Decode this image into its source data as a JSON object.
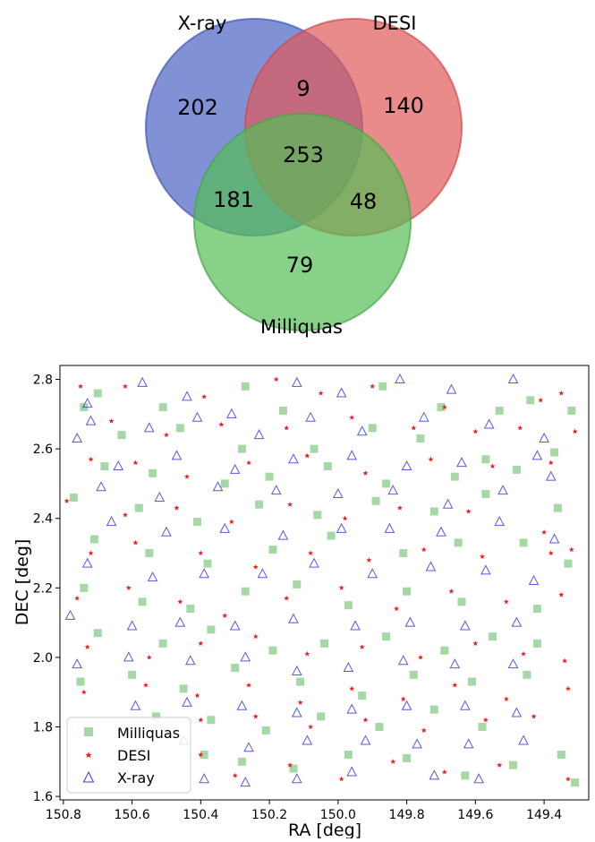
{
  "venn": {
    "sets": [
      "X-ray",
      "DESI",
      "Milliquas"
    ],
    "colors": {
      "X-ray": "#4c63c4",
      "DESI": "#e05a5a",
      "Milliquas": "#56bd56"
    },
    "counts": {
      "xray_only": "202",
      "desi_only": "140",
      "milliquas_only": "79",
      "xray_desi": "9",
      "xray_milliquas": "181",
      "desi_milliquas": "48",
      "all_three": "253"
    }
  },
  "chart_data": {
    "type": "scatter",
    "xlabel": "RA [deg]",
    "ylabel": "DEC [deg]",
    "xlim": [
      150.81,
      149.27
    ],
    "ylim": [
      1.59,
      2.84
    ],
    "x_ticks": [
      "150.8",
      "150.6",
      "150.4",
      "150.2",
      "150.0",
      "149.8",
      "149.6",
      "149.4"
    ],
    "y_ticks": [
      "1.6",
      "1.8",
      "2.0",
      "2.2",
      "2.4",
      "2.6",
      "2.8"
    ],
    "legend_position": "lower-left",
    "legend": [
      "Milliquas",
      "DESI",
      "X-ray"
    ],
    "series_styles": [
      {
        "name": "Milliquas",
        "marker": "square",
        "color": "#a6d8a6"
      },
      {
        "name": "DESI",
        "marker": "star",
        "color": "#ee1c1c"
      },
      {
        "name": "X-ray",
        "marker": "triangle",
        "color": "#3b3bdd"
      }
    ],
    "series": [
      {
        "name": "Milliquas",
        "points": [
          [
            150.74,
            2.72
          ],
          [
            150.7,
            2.76
          ],
          [
            150.51,
            2.72
          ],
          [
            150.27,
            2.78
          ],
          [
            150.16,
            2.71
          ],
          [
            149.87,
            2.78
          ],
          [
            149.7,
            2.72
          ],
          [
            149.53,
            2.71
          ],
          [
            149.44,
            2.74
          ],
          [
            149.32,
            2.71
          ],
          [
            150.63,
            2.64
          ],
          [
            150.46,
            2.66
          ],
          [
            150.28,
            2.6
          ],
          [
            150.07,
            2.6
          ],
          [
            149.9,
            2.66
          ],
          [
            149.76,
            2.63
          ],
          [
            149.57,
            2.57
          ],
          [
            149.37,
            2.59
          ],
          [
            150.68,
            2.55
          ],
          [
            150.54,
            2.53
          ],
          [
            150.33,
            2.5
          ],
          [
            150.2,
            2.52
          ],
          [
            150.03,
            2.55
          ],
          [
            149.86,
            2.5
          ],
          [
            149.66,
            2.52
          ],
          [
            149.48,
            2.54
          ],
          [
            150.77,
            2.46
          ],
          [
            150.58,
            2.43
          ],
          [
            150.41,
            2.39
          ],
          [
            150.23,
            2.44
          ],
          [
            150.06,
            2.41
          ],
          [
            149.89,
            2.45
          ],
          [
            149.72,
            2.42
          ],
          [
            149.57,
            2.47
          ],
          [
            149.36,
            2.43
          ],
          [
            150.71,
            2.34
          ],
          [
            150.55,
            2.3
          ],
          [
            150.38,
            2.27
          ],
          [
            150.19,
            2.31
          ],
          [
            150.02,
            2.35
          ],
          [
            149.81,
            2.3
          ],
          [
            149.65,
            2.33
          ],
          [
            149.46,
            2.33
          ],
          [
            149.33,
            2.27
          ],
          [
            150.74,
            2.2
          ],
          [
            150.57,
            2.16
          ],
          [
            150.43,
            2.14
          ],
          [
            150.27,
            2.19
          ],
          [
            150.12,
            2.21
          ],
          [
            149.97,
            2.15
          ],
          [
            149.8,
            2.19
          ],
          [
            149.64,
            2.16
          ],
          [
            149.42,
            2.14
          ],
          [
            150.7,
            2.07
          ],
          [
            150.51,
            2.04
          ],
          [
            150.37,
            2.08
          ],
          [
            150.19,
            2.02
          ],
          [
            150.04,
            2.04
          ],
          [
            149.86,
            2.06
          ],
          [
            149.69,
            2.02
          ],
          [
            149.55,
            2.06
          ],
          [
            149.42,
            2.04
          ],
          [
            150.75,
            1.93
          ],
          [
            150.6,
            1.95
          ],
          [
            150.45,
            1.91
          ],
          [
            150.3,
            1.97
          ],
          [
            150.11,
            1.93
          ],
          [
            149.93,
            1.89
          ],
          [
            149.78,
            1.95
          ],
          [
            149.61,
            1.93
          ],
          [
            149.45,
            1.95
          ],
          [
            150.53,
            1.83
          ],
          [
            150.37,
            1.82
          ],
          [
            150.21,
            1.79
          ],
          [
            150.05,
            1.83
          ],
          [
            149.88,
            1.8
          ],
          [
            149.72,
            1.85
          ],
          [
            149.58,
            1.8
          ],
          [
            149.35,
            1.72
          ],
          [
            150.39,
            1.72
          ],
          [
            150.28,
            1.7
          ],
          [
            150.13,
            1.68
          ],
          [
            149.97,
            1.72
          ],
          [
            149.8,
            1.71
          ],
          [
            149.63,
            1.66
          ],
          [
            149.49,
            1.69
          ],
          [
            149.31,
            1.64
          ]
        ]
      },
      {
        "name": "DESI",
        "points": [
          [
            150.75,
            2.78
          ],
          [
            150.62,
            2.78
          ],
          [
            150.39,
            2.75
          ],
          [
            150.18,
            2.8
          ],
          [
            150.05,
            2.76
          ],
          [
            149.9,
            2.78
          ],
          [
            149.69,
            2.72
          ],
          [
            149.41,
            2.74
          ],
          [
            149.35,
            2.76
          ],
          [
            150.66,
            2.68
          ],
          [
            150.5,
            2.64
          ],
          [
            150.34,
            2.67
          ],
          [
            150.15,
            2.66
          ],
          [
            149.96,
            2.69
          ],
          [
            149.78,
            2.66
          ],
          [
            149.6,
            2.65
          ],
          [
            149.47,
            2.66
          ],
          [
            149.31,
            2.65
          ],
          [
            150.72,
            2.57
          ],
          [
            150.59,
            2.56
          ],
          [
            150.44,
            2.52
          ],
          [
            150.26,
            2.56
          ],
          [
            150.09,
            2.58
          ],
          [
            149.92,
            2.53
          ],
          [
            149.73,
            2.57
          ],
          [
            149.55,
            2.55
          ],
          [
            149.38,
            2.56
          ],
          [
            150.79,
            2.45
          ],
          [
            150.62,
            2.41
          ],
          [
            150.47,
            2.43
          ],
          [
            150.31,
            2.39
          ],
          [
            150.14,
            2.44
          ],
          [
            149.98,
            2.4
          ],
          [
            149.82,
            2.43
          ],
          [
            149.62,
            2.42
          ],
          [
            149.4,
            2.36
          ],
          [
            150.72,
            2.3
          ],
          [
            150.59,
            2.33
          ],
          [
            150.4,
            2.3
          ],
          [
            150.24,
            2.26
          ],
          [
            150.08,
            2.3
          ],
          [
            149.91,
            2.28
          ],
          [
            149.75,
            2.31
          ],
          [
            149.58,
            2.29
          ],
          [
            149.38,
            2.3
          ],
          [
            149.32,
            2.31
          ],
          [
            150.76,
            2.17
          ],
          [
            150.61,
            2.2
          ],
          [
            150.46,
            2.16
          ],
          [
            150.33,
            2.12
          ],
          [
            150.15,
            2.17
          ],
          [
            149.99,
            2.2
          ],
          [
            149.83,
            2.14
          ],
          [
            149.67,
            2.19
          ],
          [
            149.51,
            2.16
          ],
          [
            149.35,
            2.18
          ],
          [
            150.73,
            2.03
          ],
          [
            150.55,
            2.0
          ],
          [
            150.4,
            2.04
          ],
          [
            150.24,
            2.06
          ],
          [
            150.09,
            2.01
          ],
          [
            149.93,
            2.03
          ],
          [
            149.76,
            2.0
          ],
          [
            149.6,
            2.04
          ],
          [
            149.46,
            2.01
          ],
          [
            149.34,
            1.99
          ],
          [
            150.74,
            1.9
          ],
          [
            150.56,
            1.92
          ],
          [
            150.41,
            1.89
          ],
          [
            150.26,
            1.92
          ],
          [
            150.11,
            1.87
          ],
          [
            149.96,
            1.91
          ],
          [
            149.81,
            1.88
          ],
          [
            149.66,
            1.92
          ],
          [
            149.51,
            1.88
          ],
          [
            149.33,
            1.91
          ],
          [
            150.4,
            1.82
          ],
          [
            150.24,
            1.83
          ],
          [
            150.08,
            1.8
          ],
          [
            149.92,
            1.82
          ],
          [
            149.75,
            1.79
          ],
          [
            149.57,
            1.82
          ],
          [
            149.43,
            1.83
          ],
          [
            150.4,
            1.72
          ],
          [
            150.3,
            1.66
          ],
          [
            150.14,
            1.69
          ],
          [
            149.99,
            1.65
          ],
          [
            149.84,
            1.7
          ],
          [
            149.69,
            1.67
          ],
          [
            149.53,
            1.69
          ],
          [
            149.33,
            1.65
          ]
        ]
      },
      {
        "name": "X-ray",
        "points": [
          [
            150.73,
            2.73
          ],
          [
            150.57,
            2.79
          ],
          [
            150.44,
            2.75
          ],
          [
            150.31,
            2.7
          ],
          [
            150.12,
            2.79
          ],
          [
            149.99,
            2.76
          ],
          [
            149.82,
            2.8
          ],
          [
            149.67,
            2.77
          ],
          [
            149.49,
            2.8
          ],
          [
            150.72,
            2.68
          ],
          [
            150.55,
            2.66
          ],
          [
            150.41,
            2.69
          ],
          [
            150.23,
            2.64
          ],
          [
            150.08,
            2.69
          ],
          [
            149.93,
            2.65
          ],
          [
            149.75,
            2.69
          ],
          [
            149.56,
            2.67
          ],
          [
            149.4,
            2.63
          ],
          [
            150.76,
            2.63
          ],
          [
            150.64,
            2.55
          ],
          [
            150.47,
            2.58
          ],
          [
            150.3,
            2.54
          ],
          [
            150.13,
            2.57
          ],
          [
            149.96,
            2.58
          ],
          [
            149.8,
            2.55
          ],
          [
            149.64,
            2.56
          ],
          [
            149.42,
            2.58
          ],
          [
            150.69,
            2.49
          ],
          [
            150.52,
            2.46
          ],
          [
            150.35,
            2.49
          ],
          [
            150.18,
            2.48
          ],
          [
            150.0,
            2.47
          ],
          [
            149.84,
            2.48
          ],
          [
            149.68,
            2.44
          ],
          [
            149.52,
            2.48
          ],
          [
            149.38,
            2.52
          ],
          [
            150.66,
            2.39
          ],
          [
            150.5,
            2.36
          ],
          [
            150.33,
            2.37
          ],
          [
            150.16,
            2.35
          ],
          [
            149.99,
            2.37
          ],
          [
            149.85,
            2.37
          ],
          [
            149.7,
            2.36
          ],
          [
            149.53,
            2.39
          ],
          [
            149.37,
            2.34
          ],
          [
            150.73,
            2.27
          ],
          [
            150.54,
            2.23
          ],
          [
            150.39,
            2.24
          ],
          [
            150.22,
            2.24
          ],
          [
            150.07,
            2.27
          ],
          [
            149.9,
            2.24
          ],
          [
            149.73,
            2.26
          ],
          [
            149.57,
            2.25
          ],
          [
            149.43,
            2.22
          ],
          [
            150.78,
            2.12
          ],
          [
            150.6,
            2.09
          ],
          [
            150.46,
            2.1
          ],
          [
            150.3,
            2.09
          ],
          [
            150.13,
            2.11
          ],
          [
            149.95,
            2.09
          ],
          [
            149.79,
            2.1
          ],
          [
            149.63,
            2.09
          ],
          [
            149.48,
            2.1
          ],
          [
            150.76,
            1.98
          ],
          [
            150.61,
            2.0
          ],
          [
            150.43,
            1.99
          ],
          [
            150.27,
            2.0
          ],
          [
            150.12,
            1.96
          ],
          [
            149.97,
            1.97
          ],
          [
            149.81,
            1.99
          ],
          [
            149.66,
            1.98
          ],
          [
            149.49,
            1.98
          ],
          [
            150.59,
            1.86
          ],
          [
            150.44,
            1.87
          ],
          [
            150.28,
            1.86
          ],
          [
            150.12,
            1.84
          ],
          [
            149.96,
            1.85
          ],
          [
            149.8,
            1.86
          ],
          [
            149.63,
            1.86
          ],
          [
            149.48,
            1.84
          ],
          [
            150.45,
            1.76
          ],
          [
            150.26,
            1.74
          ],
          [
            150.09,
            1.76
          ],
          [
            149.92,
            1.76
          ],
          [
            149.77,
            1.75
          ],
          [
            149.62,
            1.75
          ],
          [
            149.46,
            1.76
          ],
          [
            150.39,
            1.65
          ],
          [
            150.27,
            1.64
          ],
          [
            150.12,
            1.65
          ],
          [
            149.96,
            1.67
          ],
          [
            149.72,
            1.66
          ],
          [
            149.59,
            1.65
          ]
        ]
      }
    ]
  }
}
